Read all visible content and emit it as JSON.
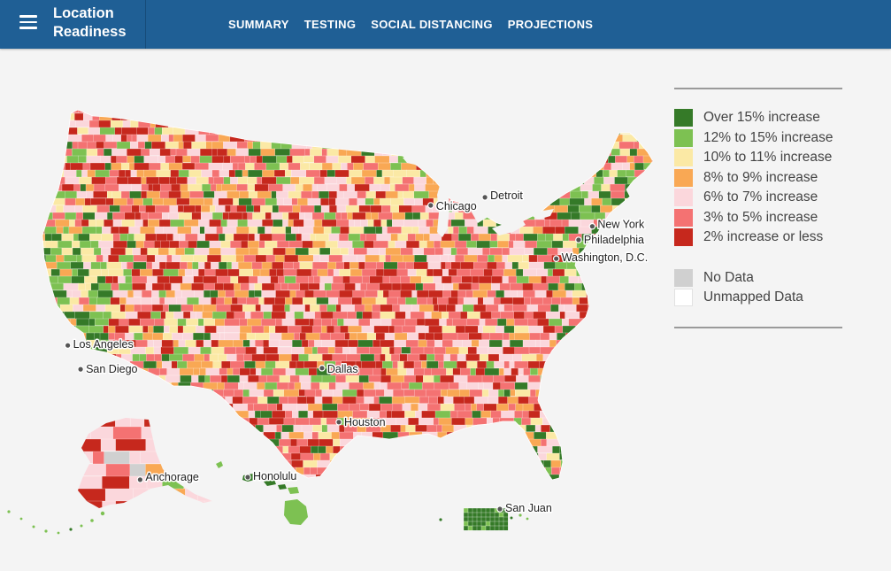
{
  "header": {
    "app_title": "Location\nReadiness",
    "nav": [
      "SUMMARY",
      "TESTING",
      "SOCIAL DISTANCING",
      "PROJECTIONS"
    ]
  },
  "legend": {
    "items": [
      {
        "label": "Over 15% increase",
        "color": "#357a28"
      },
      {
        "label": "12% to 15% increase",
        "color": "#7dc152"
      },
      {
        "label": "10%  to 11% increase",
        "color": "#fbe9a5"
      },
      {
        "label": "8% to 9% increase",
        "color": "#f9a854"
      },
      {
        "label": "6% to 7% increase",
        "color": "#fbd7dc"
      },
      {
        "label": "3% to 5% increase",
        "color": "#f47272"
      },
      {
        "label": "2% increase or less",
        "color": "#c6281d"
      }
    ],
    "extra": [
      {
        "label": "No Data",
        "color": "#d0d0d0"
      },
      {
        "label": "Unmapped Data",
        "color": "#ffffff"
      }
    ]
  },
  "cities": [
    {
      "name": "Chicago",
      "lon": -87.63,
      "lat": 41.88
    },
    {
      "name": "Detroit",
      "lon": -83.05,
      "lat": 42.33
    },
    {
      "name": "New York",
      "lon": -74.0,
      "lat": 40.71
    },
    {
      "name": "Philadelphia",
      "lon": -75.16,
      "lat": 39.95
    },
    {
      "name": "Washington, D.C.",
      "lon": -77.04,
      "lat": 38.9
    },
    {
      "name": "Los Angeles",
      "lon": -118.24,
      "lat": 34.05
    },
    {
      "name": "San Diego",
      "lon": -117.16,
      "lat": 32.72
    },
    {
      "name": "Dallas",
      "lon": -96.8,
      "lat": 32.78
    },
    {
      "name": "Houston",
      "lon": -95.37,
      "lat": 29.76
    },
    {
      "name": "Anchorage",
      "lon": -149.9,
      "lat": 61.22
    },
    {
      "name": "Honolulu",
      "lon": -157.86,
      "lat": 21.31
    },
    {
      "name": "San Juan",
      "lon": -66.1,
      "lat": 18.47
    }
  ]
}
